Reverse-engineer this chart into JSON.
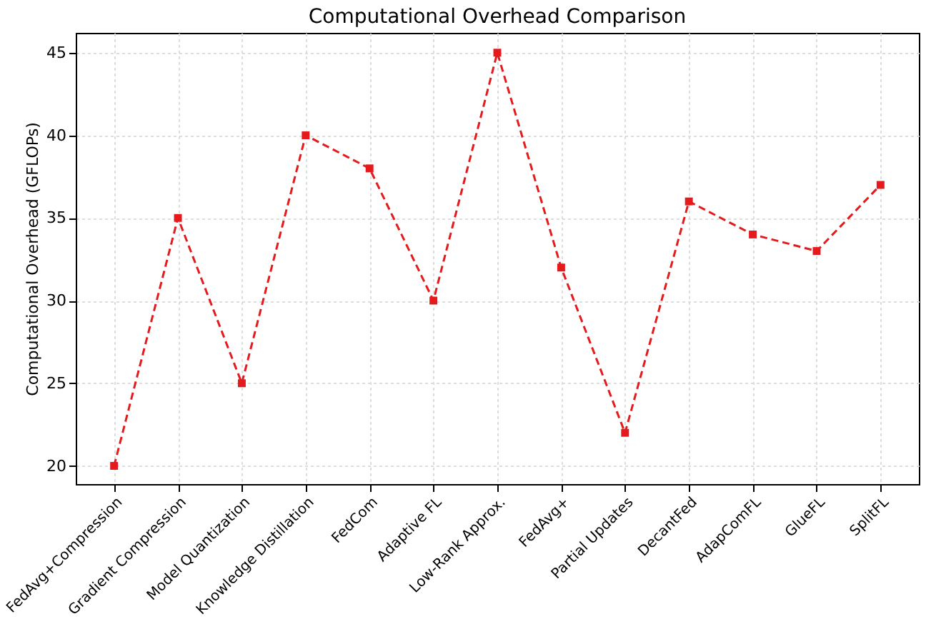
{
  "chart_data": {
    "type": "line",
    "title": "Computational Overhead Comparison",
    "ylabel": "Computational Overhead (GFLOPs)",
    "categories": [
      "FedAvg+Compression",
      "Gradient Compression",
      "Model Quantization",
      "Knowledge Distillation",
      "FedCom",
      "Adaptive FL",
      "Low-Rank Approx.",
      "FedAvg+",
      "Partial Updates",
      "DecantFed",
      "AdapComFL",
      "GlueFL",
      "SplitFL"
    ],
    "series": [
      {
        "color": "#e41a1c",
        "values": [
          20,
          35,
          25,
          40,
          38,
          30,
          45,
          32,
          22,
          36,
          34,
          33,
          37
        ]
      }
    ],
    "ylim": [
      18.9,
      46.2
    ],
    "yticks": [
      20,
      25,
      30,
      35,
      40,
      45
    ],
    "grid": true,
    "marker": "square",
    "line_style": "dashed"
  }
}
